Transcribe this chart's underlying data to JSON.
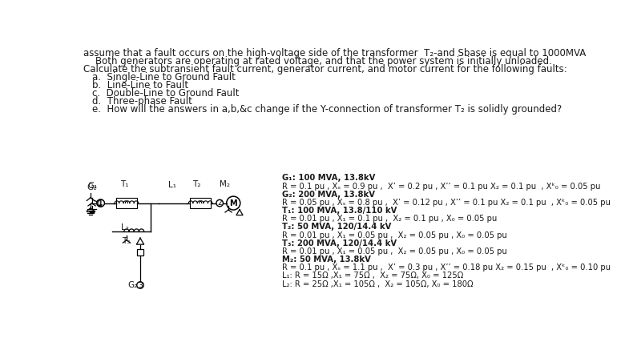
{
  "bg_color": "#ffffff",
  "text_color": "#1a1a1a",
  "fig_width": 7.8,
  "fig_height": 4.32,
  "dpi": 100,
  "header_line1": "assume that a fault occurs on the high-voltage side of the transformer  T₂-and Sbase is equal to 1000MVA",
  "header_line2": "    Both generators are operating at rated voltage, and that the power system is initially unloaded.",
  "header_line3": "Calculate the subtransient fault current, generator current, and motor current for the following faults:",
  "list_items": [
    "a.  Single-Line to Ground Fault",
    "b.  Line-Line to Fault",
    "c.  Double-Line to Ground Fault",
    "d.  Three-phase Fault",
    "e.  How will the answers in a,b,&c change if the Y-connection of transformer T₂ is solidly grounded?"
  ],
  "param_lines": [
    [
      "G₁: 100 MVA, 13.8kV",
      true
    ],
    [
      "R = 0.1 pu , Xₛ = 0.9 pu ,  X’ = 0.2 pu , X’’ = 0.1 pu X₂ = 0.1 pu  , Xᵏ₀ = 0.05 pu",
      false
    ],
    [
      "G₂: 200 MVA, 13.8kV",
      true
    ],
    [
      "R = 0.05 pu , Xₛ = 0.8 pu ,  X’ = 0.12 pu , X’’ = 0.1 pu X₂ = 0.1 pu  , Xᵏ₀ = 0.05 pu",
      false
    ],
    [
      "T₁: 100 MVA, 13.8/110 kV",
      true
    ],
    [
      "R = 0.01 pu , X₁ = 0.1 pu ,  X₂ = 0.1 pu , X₀ = 0.05 pu",
      false
    ],
    [
      "T₂: 50 MVA, 120/14.4 kV",
      true
    ],
    [
      "R = 0.01 pu , X₁ = 0.05 pu ,  X₂ = 0.05 pu , X₀ = 0.05 pu",
      false
    ],
    [
      "T₃: 200 MVA, 120/14.4 kV",
      true
    ],
    [
      "R = 0.01 pu , X₁ = 0.05 pu ,  X₂ = 0.05 pu , X₀ = 0.05 pu",
      false
    ],
    [
      "M₂: 50 MVA, 13.8kV",
      true
    ],
    [
      "R = 0.1 pu , Xₛ = 1.1 pu ,  X’ = 0.3 pu , X’’ = 0.18 pu X₂ = 0.15 pu  , Xᵏ₀ = 0.10 pu",
      false
    ],
    [
      "L₁: R = 15Ω ,X₁ = 75Ω ,  X₂ = 75Ω, X₀ = 125Ω",
      false
    ],
    [
      "L₂: R = 25Ω ,X₁ = 105Ω ,  X₂ = 105Ω, X₀ = 180Ω",
      false
    ]
  ],
  "header_fontsize": 8.5,
  "list_fontsize": 8.5,
  "param_fontsize": 7.2
}
